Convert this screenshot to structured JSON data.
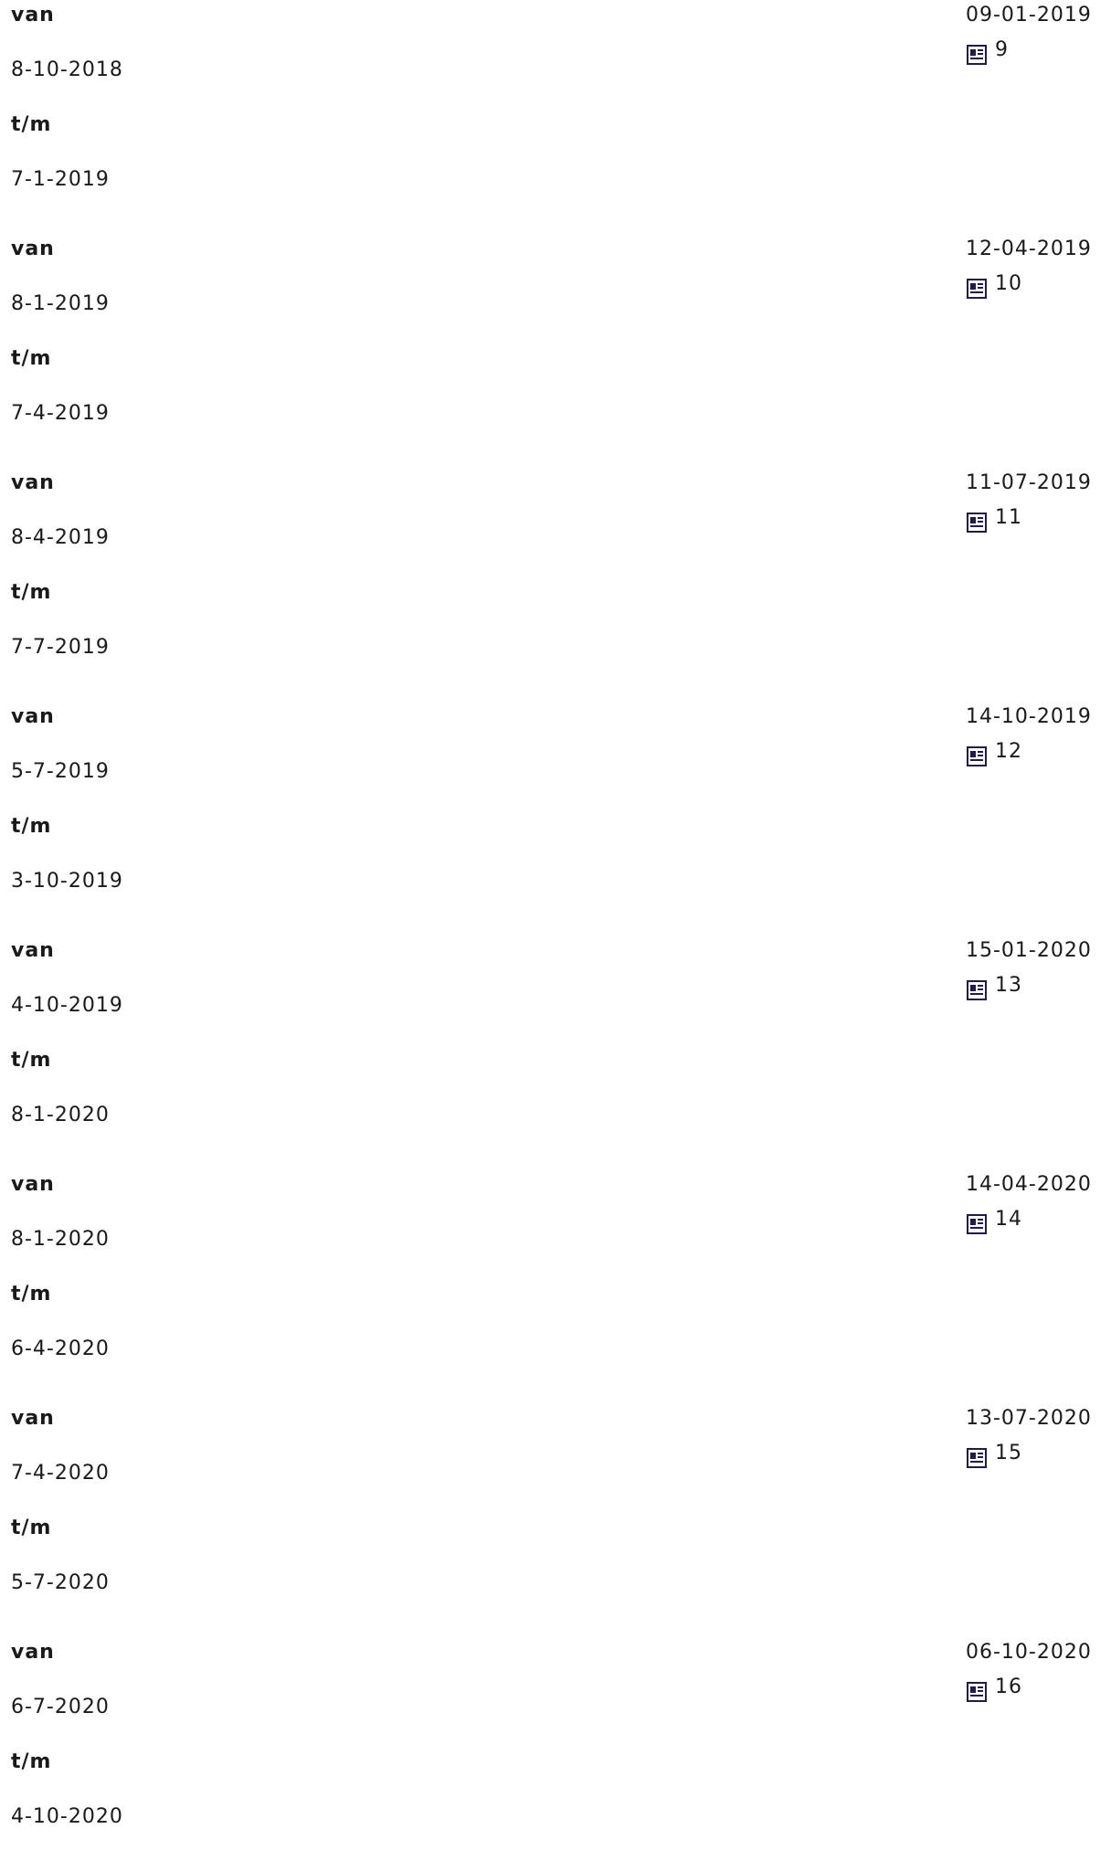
{
  "labels": {
    "from": "van",
    "to": "t/m"
  },
  "icon": "document-icon",
  "entries": [
    {
      "from": "8-10-2018",
      "to": "7-1-2019",
      "published": "09-01-2019",
      "number": "9"
    },
    {
      "from": "8-1-2019",
      "to": "7-4-2019",
      "published": "12-04-2019",
      "number": "10"
    },
    {
      "from": "8-4-2019",
      "to": "7-7-2019",
      "published": "11-07-2019",
      "number": "11"
    },
    {
      "from": "5-7-2019",
      "to": "3-10-2019",
      "published": "14-10-2019",
      "number": "12"
    },
    {
      "from": "4-10-2019",
      "to": "8-1-2020",
      "published": "15-01-2020",
      "number": "13"
    },
    {
      "from": "8-1-2020",
      "to": "6-4-2020",
      "published": "14-04-2020",
      "number": "14"
    },
    {
      "from": "7-4-2020",
      "to": "5-7-2020",
      "published": "13-07-2020",
      "number": "15"
    },
    {
      "from": "6-7-2020",
      "to": "4-10-2020",
      "published": "06-10-2020",
      "number": "16"
    }
  ]
}
